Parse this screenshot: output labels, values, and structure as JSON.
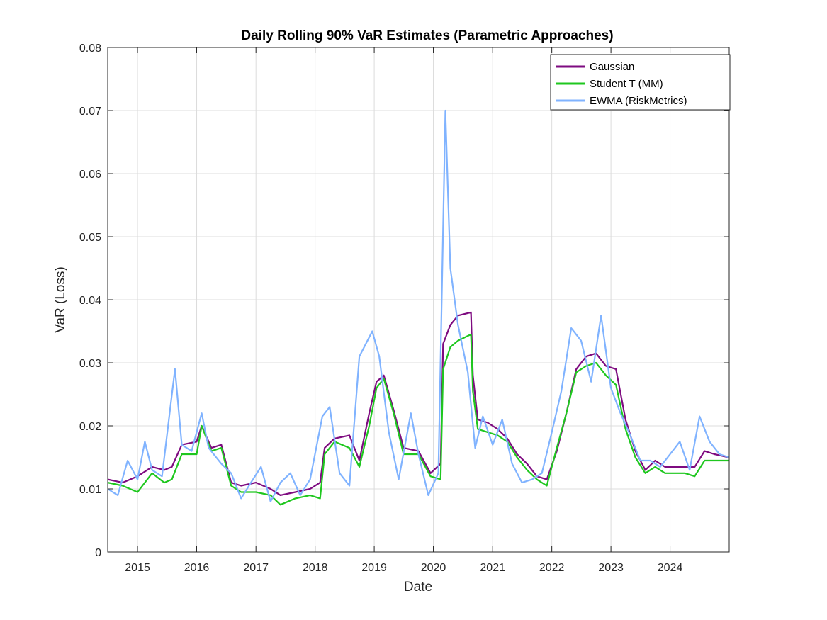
{
  "chart_data": {
    "type": "line",
    "title": "Daily Rolling 90% VaR Estimates (Parametric Approaches)",
    "xlabel": "Date",
    "ylabel": "VaR (Loss)",
    "xlim": [
      "2014-07-01",
      "2024-12-31"
    ],
    "ylim": [
      0,
      0.08
    ],
    "x_ticks": [
      "2015",
      "2016",
      "2017",
      "2018",
      "2019",
      "2020",
      "2021",
      "2022",
      "2023",
      "2024"
    ],
    "y_ticks": [
      "0",
      "0.01",
      "0.02",
      "0.03",
      "0.04",
      "0.05",
      "0.06",
      "0.07",
      "0.08"
    ],
    "grid": true,
    "legend_position": "top-right",
    "series": [
      {
        "name": "Gaussian",
        "color": "#7E0B80",
        "x": [
          "2014-07-01",
          "2014-10-01",
          "2015-01-01",
          "2015-04-01",
          "2015-06-15",
          "2015-08-01",
          "2015-10-01",
          "2016-01-01",
          "2016-02-01",
          "2016-04-01",
          "2016-06-01",
          "2016-08-01",
          "2016-10-01",
          "2017-01-01",
          "2017-04-01",
          "2017-06-01",
          "2017-09-01",
          "2017-12-01",
          "2018-02-01",
          "2018-03-01",
          "2018-05-01",
          "2018-08-01",
          "2018-10-01",
          "2018-12-01",
          "2019-01-15",
          "2019-03-01",
          "2019-05-01",
          "2019-07-01",
          "2019-10-01",
          "2019-12-15",
          "2020-02-15",
          "2020-03-01",
          "2020-04-15",
          "2020-06-01",
          "2020-08-20",
          "2020-09-01",
          "2020-10-01",
          "2020-12-01",
          "2021-02-01",
          "2021-04-01",
          "2021-06-01",
          "2021-08-01",
          "2021-10-01",
          "2021-12-01",
          "2022-02-01",
          "2022-04-01",
          "2022-06-01",
          "2022-08-01",
          "2022-10-01",
          "2022-12-01",
          "2023-02-01",
          "2023-04-01",
          "2023-06-01",
          "2023-08-01",
          "2023-10-01",
          "2023-12-01",
          "2024-02-01",
          "2024-04-01",
          "2024-06-01",
          "2024-08-01",
          "2024-10-01",
          "2024-12-31"
        ],
        "values": [
          0.0115,
          0.011,
          0.012,
          0.0135,
          0.013,
          0.0135,
          0.017,
          0.0175,
          0.02,
          0.0165,
          0.017,
          0.011,
          0.0105,
          0.011,
          0.01,
          0.009,
          0.0095,
          0.01,
          0.011,
          0.0165,
          0.018,
          0.0185,
          0.0145,
          0.022,
          0.027,
          0.028,
          0.0225,
          0.0165,
          0.016,
          0.0125,
          0.014,
          0.033,
          0.036,
          0.0375,
          0.038,
          0.028,
          0.021,
          0.0205,
          0.0195,
          0.018,
          0.0155,
          0.014,
          0.012,
          0.0115,
          0.016,
          0.022,
          0.029,
          0.031,
          0.0315,
          0.0295,
          0.029,
          0.021,
          0.016,
          0.013,
          0.0145,
          0.0135,
          0.0135,
          0.0135,
          0.0135,
          0.016,
          0.0155,
          0.015
        ]
      },
      {
        "name": "Student T (MM)",
        "color": "#1FC71F",
        "x": [
          "2014-07-01",
          "2014-10-01",
          "2015-01-01",
          "2015-04-01",
          "2015-06-15",
          "2015-08-01",
          "2015-10-01",
          "2016-01-01",
          "2016-02-01",
          "2016-04-01",
          "2016-06-01",
          "2016-08-01",
          "2016-10-01",
          "2017-01-01",
          "2017-04-01",
          "2017-06-01",
          "2017-09-01",
          "2017-12-01",
          "2018-02-01",
          "2018-03-01",
          "2018-05-01",
          "2018-08-01",
          "2018-10-01",
          "2018-12-01",
          "2019-01-15",
          "2019-03-01",
          "2019-05-01",
          "2019-07-01",
          "2019-10-01",
          "2019-12-15",
          "2020-02-15",
          "2020-03-01",
          "2020-04-15",
          "2020-06-01",
          "2020-08-20",
          "2020-09-01",
          "2020-10-01",
          "2020-12-01",
          "2021-02-01",
          "2021-04-01",
          "2021-06-01",
          "2021-08-01",
          "2021-10-01",
          "2021-12-01",
          "2022-02-01",
          "2022-04-01",
          "2022-06-01",
          "2022-08-01",
          "2022-10-01",
          "2022-12-01",
          "2023-02-01",
          "2023-04-01",
          "2023-06-01",
          "2023-08-01",
          "2023-10-01",
          "2023-12-01",
          "2024-02-01",
          "2024-04-01",
          "2024-06-01",
          "2024-08-01",
          "2024-10-01",
          "2024-12-31"
        ],
        "values": [
          0.011,
          0.0105,
          0.0095,
          0.0125,
          0.011,
          0.0115,
          0.0155,
          0.0155,
          0.02,
          0.016,
          0.0165,
          0.0105,
          0.0095,
          0.0095,
          0.009,
          0.0075,
          0.0085,
          0.009,
          0.0085,
          0.0155,
          0.0175,
          0.0165,
          0.0135,
          0.02,
          0.026,
          0.0275,
          0.022,
          0.0155,
          0.0155,
          0.012,
          0.0115,
          0.029,
          0.0325,
          0.0335,
          0.0345,
          0.0255,
          0.0195,
          0.019,
          0.0185,
          0.0175,
          0.015,
          0.013,
          0.0115,
          0.0105,
          0.0165,
          0.022,
          0.0285,
          0.0295,
          0.03,
          0.028,
          0.0265,
          0.0195,
          0.015,
          0.0125,
          0.0135,
          0.0125,
          0.0125,
          0.0125,
          0.012,
          0.0145,
          0.0145,
          0.0145
        ]
      },
      {
        "name": "EWMA (RiskMetrics)",
        "color": "#80B3FF",
        "x": [
          "2014-07-01",
          "2014-09-01",
          "2014-11-01",
          "2015-01-01",
          "2015-02-15",
          "2015-04-01",
          "2015-06-01",
          "2015-08-20",
          "2015-10-01",
          "2015-12-01",
          "2016-02-01",
          "2016-03-15",
          "2016-06-01",
          "2016-08-01",
          "2016-10-01",
          "2016-12-01",
          "2017-02-01",
          "2017-04-01",
          "2017-06-01",
          "2017-08-01",
          "2017-10-01",
          "2017-12-01",
          "2018-02-15",
          "2018-04-01",
          "2018-06-01",
          "2018-08-01",
          "2018-10-01",
          "2018-12-20",
          "2019-02-01",
          "2019-04-01",
          "2019-06-01",
          "2019-08-15",
          "2019-10-01",
          "2019-12-01",
          "2020-02-01",
          "2020-03-15",
          "2020-04-15",
          "2020-06-01",
          "2020-08-01",
          "2020-09-15",
          "2020-11-01",
          "2021-01-01",
          "2021-03-01",
          "2021-05-01",
          "2021-07-01",
          "2021-09-01",
          "2021-11-01",
          "2022-01-01",
          "2022-03-01",
          "2022-05-01",
          "2022-07-01",
          "2022-09-01",
          "2022-11-01",
          "2023-01-01",
          "2023-03-01",
          "2023-05-01",
          "2023-07-01",
          "2023-09-01",
          "2023-11-01",
          "2024-01-01",
          "2024-03-01",
          "2024-05-01",
          "2024-07-01",
          "2024-09-01",
          "2024-11-01",
          "2024-12-31"
        ],
        "values": [
          0.01,
          0.009,
          0.0145,
          0.0115,
          0.0175,
          0.013,
          0.012,
          0.029,
          0.017,
          0.016,
          0.022,
          0.0165,
          0.014,
          0.0125,
          0.0085,
          0.011,
          0.0135,
          0.008,
          0.011,
          0.0125,
          0.009,
          0.0115,
          0.0215,
          0.023,
          0.0125,
          0.0105,
          0.031,
          0.035,
          0.031,
          0.019,
          0.0115,
          0.022,
          0.0155,
          0.009,
          0.0125,
          0.07,
          0.045,
          0.036,
          0.0285,
          0.0165,
          0.0215,
          0.017,
          0.021,
          0.014,
          0.011,
          0.0115,
          0.0125,
          0.019,
          0.0255,
          0.0355,
          0.0335,
          0.027,
          0.0375,
          0.026,
          0.022,
          0.0185,
          0.0145,
          0.0145,
          0.0135,
          0.0155,
          0.0175,
          0.013,
          0.0215,
          0.0175,
          0.0155,
          0.015
        ]
      }
    ]
  }
}
